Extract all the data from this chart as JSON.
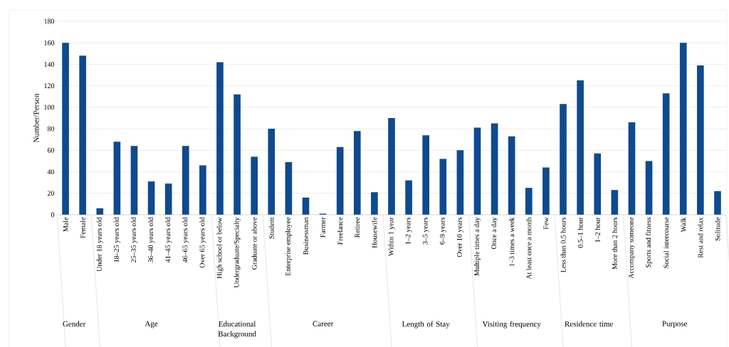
{
  "chart_data": {
    "type": "bar",
    "ylabel": "Number/Person",
    "color": "#0e4a8f",
    "categories": [
      "Male",
      "Female",
      "Under 18 years old",
      "18–25 years old",
      "25–35 years old",
      "36–40 years old",
      "41–45 years old",
      "46–65 years old",
      "Over 65 years old",
      "High school or below",
      "Undergraduate/Specialty",
      "Graduate or above",
      "Student",
      "Enterprise employee",
      "Businessman",
      "Farmer",
      "Freelance",
      "Retiree",
      "Housewife",
      "Within 1 year",
      "1–2 years",
      "3–5 years",
      "6–9 years",
      "Over 10 years",
      "Multiple times a day",
      "Once a day",
      "1–3 times a week",
      "At least once a month",
      "Few",
      "Less than 0.5 hours",
      "0.5–1 hour",
      "1–2 hour",
      "More than 2 hours",
      "Accompany someone",
      "Sports and fitness",
      "Social intercourse",
      "Walk",
      "Rest and relax",
      "Solitude"
    ],
    "values": [
      160,
      148,
      6,
      68,
      64,
      31,
      29,
      64,
      46,
      142,
      112,
      54,
      80,
      49,
      16,
      1,
      63,
      78,
      21,
      90,
      32,
      74,
      52,
      60,
      81,
      85,
      73,
      25,
      44,
      103,
      125,
      57,
      23,
      86,
      50,
      113,
      160,
      139,
      22
    ],
    "ylim": [
      0,
      180
    ],
    "yticks": [
      0,
      20,
      40,
      60,
      80,
      100,
      120,
      140,
      160,
      180
    ],
    "grid": "y",
    "annotations": [
      "Gender",
      "Age",
      "Educational Background",
      "Career",
      "Length of Stay",
      "Visiting frequency",
      "Residence time",
      "Purpose"
    ]
  }
}
